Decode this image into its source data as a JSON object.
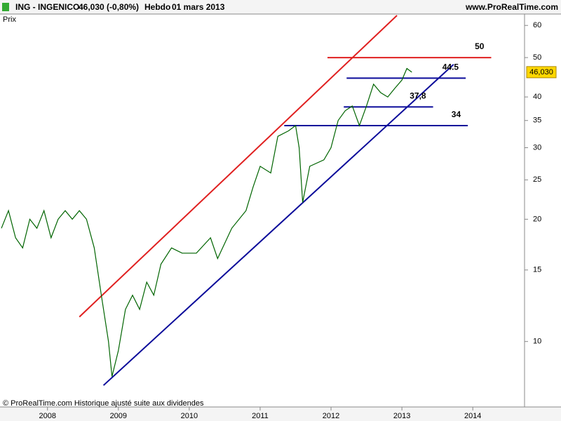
{
  "header": {
    "symbol": "ING - INGENICO",
    "quote": "46,030 (-0,80%)",
    "period": "Hebdo",
    "date": "01 mars 2013",
    "site": "www.ProRealTime.com",
    "panel": "Prix"
  },
  "footer": "© ProRealTime.com Historique ajusté suite aux dividendes",
  "chart_data": {
    "type": "line",
    "log_scale": true,
    "grid": false,
    "xlim": [
      2007.33,
      2014.73
    ],
    "xticks": [
      2008,
      2009,
      2010,
      2011,
      2012,
      2013,
      2014
    ],
    "ylim": [
      6.9,
      64
    ],
    "yticks": [
      10,
      15,
      20,
      25,
      30,
      35,
      40,
      50,
      60
    ],
    "last_price": {
      "value": 46.03,
      "label": "46,030"
    },
    "series": [
      {
        "name": "INGENICO",
        "color": "#006400",
        "x": [
          2007.35,
          2007.45,
          2007.55,
          2007.65,
          2007.75,
          2007.85,
          2007.95,
          2008.05,
          2008.15,
          2008.25,
          2008.35,
          2008.45,
          2008.55,
          2008.66,
          2008.76,
          2008.86,
          2008.91,
          2009.0,
          2009.1,
          2009.2,
          2009.3,
          2009.4,
          2009.5,
          2009.6,
          2009.75,
          2009.9,
          2010.1,
          2010.3,
          2010.4,
          2010.6,
          2010.8,
          2010.9,
          2011.0,
          2011.15,
          2011.25,
          2011.4,
          2011.5,
          2011.55,
          2011.6,
          2011.7,
          2011.9,
          2012.0,
          2012.1,
          2012.2,
          2012.3,
          2012.4,
          2012.5,
          2012.6,
          2012.7,
          2012.8,
          2012.9,
          2013.0,
          2013.07,
          2013.14
        ],
        "values": [
          19,
          21,
          18,
          17,
          20,
          19,
          21,
          18,
          20,
          21,
          20,
          21,
          20,
          17,
          13,
          10,
          8.2,
          9.5,
          12,
          13,
          12,
          14,
          13,
          15.5,
          17,
          16.5,
          16.5,
          18,
          16,
          19,
          21,
          24,
          27,
          26,
          32,
          33,
          34,
          30,
          22,
          27,
          28,
          30,
          35,
          37,
          38,
          34,
          38,
          43,
          41,
          40,
          42,
          44,
          47,
          46.03
        ]
      }
    ],
    "trend_lines": [
      {
        "color": "#e02020",
        "x": [
          2008.45,
          2012.93
        ],
        "values": [
          11.5,
          63.5
        ]
      },
      {
        "color": "#0a0a9a",
        "x": [
          2008.79,
          2013.73
        ],
        "values": [
          7.8,
          48.1
        ]
      }
    ],
    "levels": [
      {
        "value": 50,
        "color": "#e02020",
        "x": [
          2011.95,
          2014.26
        ]
      },
      {
        "value": 44.5,
        "color": "#0a0a9a",
        "x": [
          2012.22,
          2013.9
        ]
      },
      {
        "value": 37.8,
        "label": "37,8",
        "color": "#0a0a9a",
        "x": [
          2012.18,
          2013.44
        ]
      },
      {
        "value": 34,
        "color": "#0a0a9a",
        "x": [
          2011.34,
          2013.93
        ]
      }
    ]
  }
}
